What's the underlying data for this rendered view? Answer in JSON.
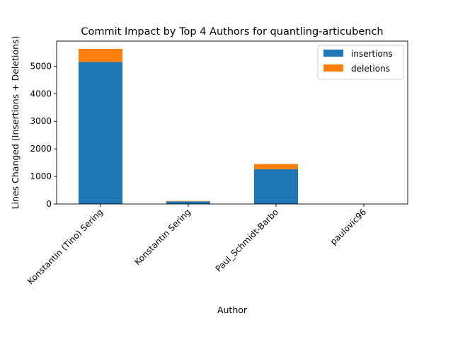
{
  "chart_data": {
    "type": "bar",
    "stacked": true,
    "title": "Commit Impact by Top 4 Authors for quantling-articubench",
    "xlabel": "Author",
    "ylabel": "Lines Changed (Insertions + Deletions)",
    "categories": [
      "Konstantin (Tino) Sering",
      "Konstantin Sering",
      "Paul_Schmidt-Barbo",
      "paulovic96"
    ],
    "series": [
      {
        "name": "insertions",
        "color": "#1f77b4",
        "values": [
          5150,
          95,
          1260,
          0
        ]
      },
      {
        "name": "deletions",
        "color": "#ff7f0e",
        "values": [
          480,
          15,
          190,
          0
        ]
      }
    ],
    "ylim": [
      0,
      5910
    ],
    "yticks": [
      0,
      1000,
      2000,
      3000,
      4000,
      5000
    ],
    "grid": false,
    "legend": "top-right"
  }
}
